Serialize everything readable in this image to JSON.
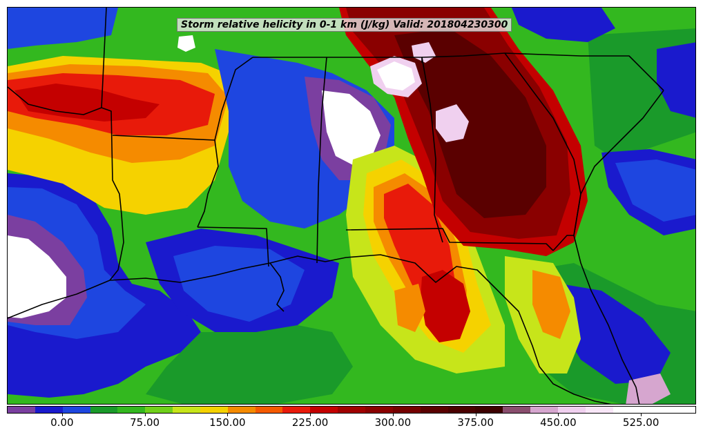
{
  "title": "Storm relative helicity in 0-1 km (J/kg) Valid: 201804230300",
  "colors": {
    "purple": "#7b3fa0",
    "blue_dark": "#1a1acd",
    "blue": "#1e46e0",
    "green_dark": "#1a9a2a",
    "green": "#33b81f",
    "green_light": "#6fd01a",
    "yellow_green": "#c7e51a",
    "yellow": "#f5d200",
    "orange": "#f58b00",
    "orange_red": "#f55a00",
    "red": "#e81a0a",
    "red_dark": "#c40000",
    "maroon": "#8a0000",
    "maroon_dark": "#5a0000",
    "brown_dark": "#3d0000",
    "mauve": "#8a4e6e",
    "pink": "#d6a6cf",
    "pink_light": "#f0d0ef",
    "white": "#ffffff",
    "state_lines": "#000000"
  },
  "colorbar": {
    "swatches": [
      "#7b3fa0",
      "#1a1acd",
      "#1e46e0",
      "#1a9a2a",
      "#33b81f",
      "#6fd01a",
      "#c7e51a",
      "#f5d200",
      "#f58b00",
      "#f55a00",
      "#e81a0a",
      "#c40000",
      "#a00000",
      "#8a0000",
      "#750000",
      "#5a0000",
      "#4a0000",
      "#3d0000",
      "#8a4e6e",
      "#d6a6cf",
      "#f0d0ef",
      "#f8e6f7",
      "#ffffff",
      "#ffffff",
      "#ffffff"
    ],
    "tick_labels": [
      "0.00",
      "75.00",
      "150.00",
      "225.00",
      "300.00",
      "375.00",
      "450.00",
      "525.00"
    ],
    "tick_values": [
      0,
      75,
      150,
      225,
      300,
      375,
      450,
      525
    ],
    "range": [
      -50,
      575
    ],
    "units": "J/kg"
  }
}
